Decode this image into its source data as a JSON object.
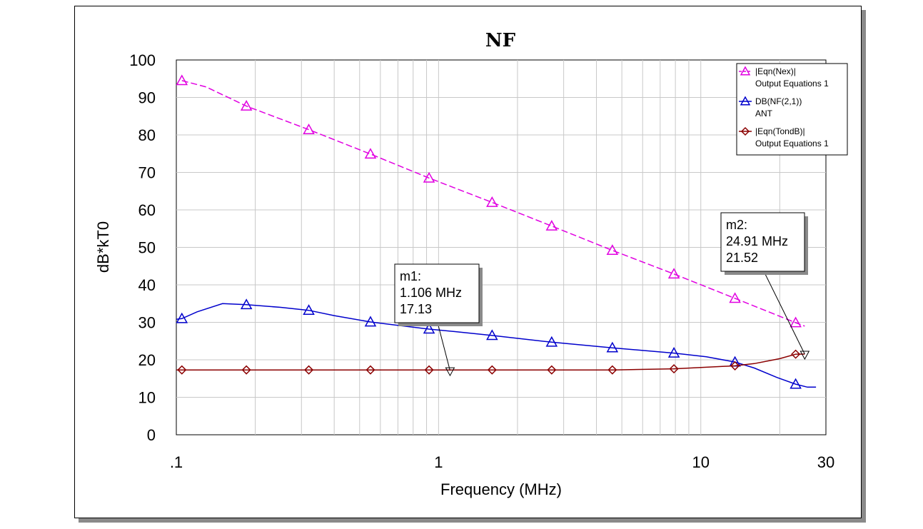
{
  "chart_data": {
    "type": "line",
    "title": "NF",
    "xlabel": "Frequency (MHz)",
    "ylabel": "dB*kT0",
    "xscale": "log",
    "xlim": [
      0.1,
      30
    ],
    "ylim": [
      0,
      100
    ],
    "x_tick_labels": [
      {
        "value": 0.1,
        "label": ".1"
      },
      {
        "value": 1,
        "label": "1"
      },
      {
        "value": 10,
        "label": "10"
      },
      {
        "value": 30,
        "label": "30"
      }
    ],
    "y_ticks": [
      0,
      10,
      20,
      30,
      40,
      50,
      60,
      70,
      80,
      90,
      100
    ],
    "grid": true,
    "legend_position": "top-right",
    "series": [
      {
        "name": "|Eqn(Nex)|",
        "source": "Output Equations 1",
        "color": "#e100e1",
        "line_style": "dashed",
        "marker": "triangle",
        "points": [
          [
            0.105,
            94.5
          ],
          [
            0.13,
            92.8
          ],
          [
            0.185,
            87.7
          ],
          [
            0.32,
            81.4
          ],
          [
            0.55,
            74.9
          ],
          [
            0.92,
            68.5
          ],
          [
            1.6,
            62.0
          ],
          [
            2.7,
            55.7
          ],
          [
            4.6,
            49.2
          ],
          [
            7.9,
            42.9
          ],
          [
            13.5,
            36.4
          ],
          [
            23.0,
            29.9
          ],
          [
            24.91,
            29.0
          ]
        ]
      },
      {
        "name": "DB(NF(2,1))",
        "source": "ANT",
        "color": "#0000cc",
        "line_style": "solid",
        "marker": "triangle",
        "points": [
          [
            0.1,
            30.8
          ],
          [
            0.105,
            31.0
          ],
          [
            0.12,
            32.8
          ],
          [
            0.15,
            35.0
          ],
          [
            0.185,
            34.7
          ],
          [
            0.25,
            34.0
          ],
          [
            0.32,
            33.2
          ],
          [
            0.4,
            31.8
          ],
          [
            0.55,
            30.1
          ],
          [
            0.7,
            29.2
          ],
          [
            0.92,
            28.2
          ],
          [
            1.2,
            27.4
          ],
          [
            1.6,
            26.5
          ],
          [
            2.7,
            24.7
          ],
          [
            4.6,
            23.2
          ],
          [
            7.9,
            21.8
          ],
          [
            10.5,
            20.8
          ],
          [
            13.5,
            19.4
          ],
          [
            16.0,
            17.8
          ],
          [
            19.5,
            15.3
          ],
          [
            23.0,
            13.5
          ],
          [
            25.5,
            12.7
          ],
          [
            27.5,
            12.7
          ]
        ]
      },
      {
        "name": "|Eqn(TondB)|",
        "source": "Output Equations 1",
        "color": "#8b0000",
        "line_style": "solid",
        "marker": "diamond",
        "points": [
          [
            0.1,
            17.3
          ],
          [
            0.105,
            17.3
          ],
          [
            0.185,
            17.3
          ],
          [
            0.32,
            17.3
          ],
          [
            0.55,
            17.3
          ],
          [
            0.92,
            17.3
          ],
          [
            1.6,
            17.3
          ],
          [
            2.7,
            17.3
          ],
          [
            4.6,
            17.3
          ],
          [
            7.9,
            17.6
          ],
          [
            13.5,
            18.4
          ],
          [
            16.0,
            19.0
          ],
          [
            20.0,
            20.3
          ],
          [
            23.0,
            21.5
          ],
          [
            24.91,
            21.52
          ]
        ]
      }
    ],
    "marker_points": {
      "0": [
        0.105,
        0.185,
        0.32,
        0.55,
        0.92,
        1.6,
        2.7,
        4.6,
        7.9,
        13.5,
        23.0
      ],
      "1": [
        0.105,
        0.185,
        0.32,
        0.55,
        0.92,
        1.6,
        2.7,
        4.6,
        7.9,
        13.5,
        23.0
      ],
      "2": [
        0.105,
        0.185,
        0.32,
        0.55,
        0.92,
        1.6,
        2.7,
        4.6,
        7.9,
        13.5,
        23.0
      ]
    },
    "annotations": [
      {
        "name": "m1:",
        "freq": "1.106 MHz",
        "value": "17.13",
        "x": 1.106,
        "y": 17.13
      },
      {
        "name": "m2:",
        "freq": "24.91 MHz",
        "value": "21.52",
        "x": 24.91,
        "y": 21.52
      }
    ]
  }
}
